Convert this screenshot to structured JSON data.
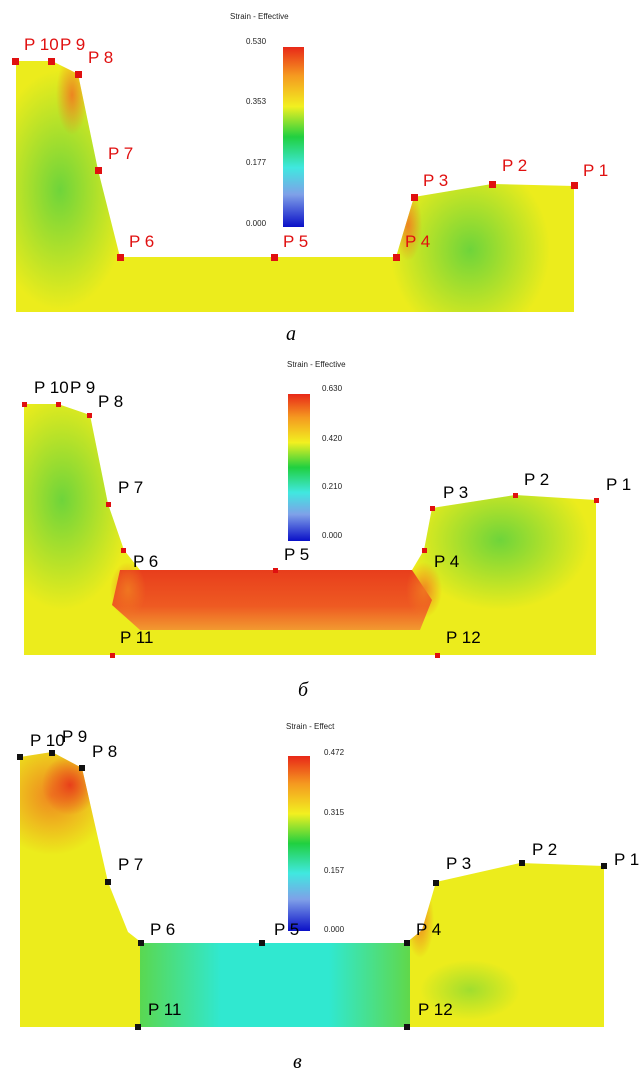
{
  "panels": [
    {
      "caption": "а",
      "colorbar": {
        "title": "Strain - Effective",
        "ticks": [
          "0.530",
          "0.353",
          "0.177",
          "0.000"
        ]
      },
      "point_color": "#e01010",
      "labels": {
        "P1": "P 1",
        "P2": "P 2",
        "P3": "P 3",
        "P4": "P 4",
        "P5": "P 5",
        "P6": "P 6",
        "P7": "P 7",
        "P8": "P 8",
        "P9": "P 9",
        "P10": "P 10"
      }
    },
    {
      "caption": "б",
      "colorbar": {
        "title": "Strain - Effective",
        "ticks": [
          "0.630",
          "0.420",
          "0.210",
          "0.000"
        ]
      },
      "point_color": "#000000",
      "labels": {
        "P1": "P 1",
        "P2": "P 2",
        "P3": "P 3",
        "P4": "P 4",
        "P5": "P 5",
        "P6": "P 6",
        "P7": "P 7",
        "P8": "P 8",
        "P9": "P 9",
        "P10": "P 10",
        "P11": "P 11",
        "P12": "P 12"
      }
    },
    {
      "caption": "в",
      "colorbar": {
        "title": "Strain - Effect",
        "ticks": [
          "0.472",
          "0.315",
          "0.157",
          "0.000"
        ]
      },
      "point_color": "#000000",
      "labels": {
        "P1": "P 1",
        "P2": "P 2",
        "P3": "P 3",
        "P4": "P 4",
        "P5": "P 5",
        "P6": "P 6",
        "P7": "P 7",
        "P8": "P 8",
        "P9": "P 9",
        "P10": "P 10",
        "P11": "P 11",
        "P12": "P 12"
      }
    }
  ]
}
